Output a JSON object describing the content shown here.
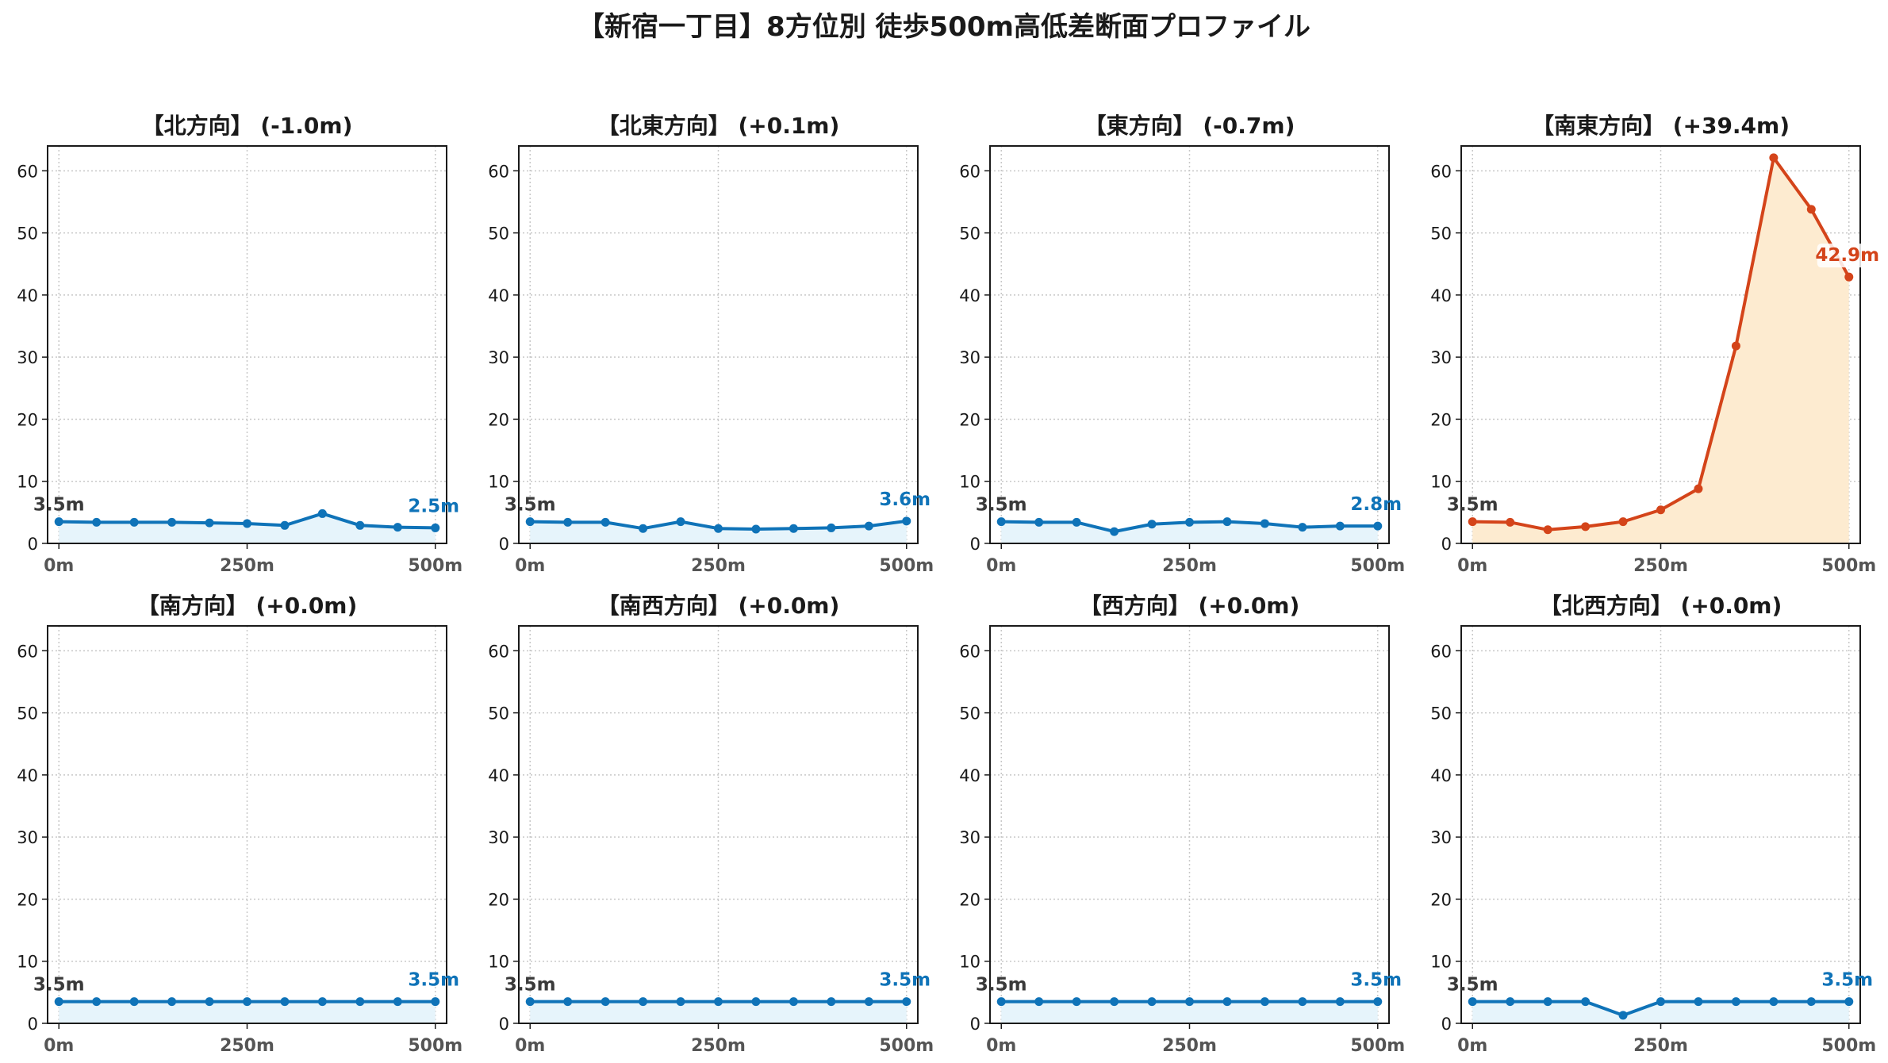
{
  "figure": {
    "title": "【新宿一丁目】8方位別 徒歩500m高低差断面プロファイル"
  },
  "colors": {
    "normal_line": "#0f73b8",
    "normal_fill": "#e6f4fb",
    "highlight_line": "#d4441a",
    "highlight_fill": "#fdebd0",
    "grid": "#c8c8c8",
    "start_label": "#3a3a3a"
  },
  "chart_data": [
    {
      "type": "area",
      "title": "【北方向】 (-1.0m)",
      "x": [
        0,
        50,
        100,
        150,
        200,
        250,
        300,
        350,
        400,
        450,
        500
      ],
      "y": [
        3.5,
        3.4,
        3.4,
        3.4,
        3.3,
        3.2,
        2.9,
        4.8,
        2.9,
        2.6,
        2.5
      ],
      "start_label": "3.5m",
      "end_label": "2.5m",
      "highlight": false,
      "xticks": [
        "0m",
        "250m",
        "500m"
      ],
      "yticks": [
        0,
        10,
        20,
        30,
        40,
        50,
        60
      ],
      "ylim": [
        0,
        64
      ],
      "xlim": [
        -15,
        515
      ],
      "grid": true
    },
    {
      "type": "area",
      "title": "【北東方向】 (+0.1m)",
      "x": [
        0,
        50,
        100,
        150,
        200,
        250,
        300,
        350,
        400,
        450,
        500
      ],
      "y": [
        3.5,
        3.4,
        3.4,
        2.4,
        3.5,
        2.4,
        2.3,
        2.4,
        2.5,
        2.8,
        3.6
      ],
      "start_label": "3.5m",
      "end_label": "3.6m",
      "highlight": false,
      "xticks": [
        "0m",
        "250m",
        "500m"
      ],
      "yticks": [
        0,
        10,
        20,
        30,
        40,
        50,
        60
      ],
      "ylim": [
        0,
        64
      ],
      "xlim": [
        -15,
        515
      ],
      "grid": true
    },
    {
      "type": "area",
      "title": "【東方向】 (-0.7m)",
      "x": [
        0,
        50,
        100,
        150,
        200,
        250,
        300,
        350,
        400,
        450,
        500
      ],
      "y": [
        3.5,
        3.4,
        3.4,
        1.9,
        3.1,
        3.4,
        3.5,
        3.2,
        2.6,
        2.8,
        2.8
      ],
      "start_label": "3.5m",
      "end_label": "2.8m",
      "highlight": false,
      "xticks": [
        "0m",
        "250m",
        "500m"
      ],
      "yticks": [
        0,
        10,
        20,
        30,
        40,
        50,
        60
      ],
      "ylim": [
        0,
        64
      ],
      "xlim": [
        -15,
        515
      ],
      "grid": true
    },
    {
      "type": "area",
      "title": "【南東方向】 (+39.4m)",
      "x": [
        0,
        50,
        100,
        150,
        200,
        250,
        300,
        350,
        400,
        450,
        500
      ],
      "y": [
        3.5,
        3.4,
        2.2,
        2.7,
        3.5,
        5.4,
        8.8,
        31.8,
        62.1,
        53.8,
        42.9
      ],
      "start_label": "3.5m",
      "end_label": "42.9m",
      "highlight": true,
      "xticks": [
        "0m",
        "250m",
        "500m"
      ],
      "yticks": [
        0,
        10,
        20,
        30,
        40,
        50,
        60
      ],
      "ylim": [
        0,
        64
      ],
      "xlim": [
        -15,
        515
      ],
      "grid": true
    },
    {
      "type": "area",
      "title": "【南方向】 (+0.0m)",
      "x": [
        0,
        50,
        100,
        150,
        200,
        250,
        300,
        350,
        400,
        450,
        500
      ],
      "y": [
        3.5,
        3.5,
        3.5,
        3.5,
        3.5,
        3.5,
        3.5,
        3.5,
        3.5,
        3.5,
        3.5
      ],
      "start_label": "3.5m",
      "end_label": "3.5m",
      "highlight": false,
      "xticks": [
        "0m",
        "250m",
        "500m"
      ],
      "yticks": [
        0,
        10,
        20,
        30,
        40,
        50,
        60
      ],
      "ylim": [
        0,
        64
      ],
      "xlim": [
        -15,
        515
      ],
      "grid": true
    },
    {
      "type": "area",
      "title": "【南西方向】 (+0.0m)",
      "x": [
        0,
        50,
        100,
        150,
        200,
        250,
        300,
        350,
        400,
        450,
        500
      ],
      "y": [
        3.5,
        3.5,
        3.5,
        3.5,
        3.5,
        3.5,
        3.5,
        3.5,
        3.5,
        3.5,
        3.5
      ],
      "start_label": "3.5m",
      "end_label": "3.5m",
      "highlight": false,
      "xticks": [
        "0m",
        "250m",
        "500m"
      ],
      "yticks": [
        0,
        10,
        20,
        30,
        40,
        50,
        60
      ],
      "ylim": [
        0,
        64
      ],
      "xlim": [
        -15,
        515
      ],
      "grid": true
    },
    {
      "type": "area",
      "title": "【西方向】 (+0.0m)",
      "x": [
        0,
        50,
        100,
        150,
        200,
        250,
        300,
        350,
        400,
        450,
        500
      ],
      "y": [
        3.5,
        3.5,
        3.5,
        3.5,
        3.5,
        3.5,
        3.5,
        3.5,
        3.5,
        3.5,
        3.5
      ],
      "start_label": "3.5m",
      "end_label": "3.5m",
      "highlight": false,
      "xticks": [
        "0m",
        "250m",
        "500m"
      ],
      "yticks": [
        0,
        10,
        20,
        30,
        40,
        50,
        60
      ],
      "ylim": [
        0,
        64
      ],
      "xlim": [
        -15,
        515
      ],
      "grid": true
    },
    {
      "type": "area",
      "title": "【北西方向】 (+0.0m)",
      "x": [
        0,
        50,
        100,
        150,
        200,
        250,
        300,
        350,
        400,
        450,
        500
      ],
      "y": [
        3.5,
        3.5,
        3.5,
        3.5,
        1.3,
        3.5,
        3.5,
        3.5,
        3.5,
        3.5,
        3.5
      ],
      "start_label": "3.5m",
      "end_label": "3.5m",
      "highlight": false,
      "xticks": [
        "0m",
        "250m",
        "500m"
      ],
      "yticks": [
        0,
        10,
        20,
        30,
        40,
        50,
        60
      ],
      "ylim": [
        0,
        64
      ],
      "xlim": [
        -15,
        515
      ],
      "grid": true
    }
  ]
}
